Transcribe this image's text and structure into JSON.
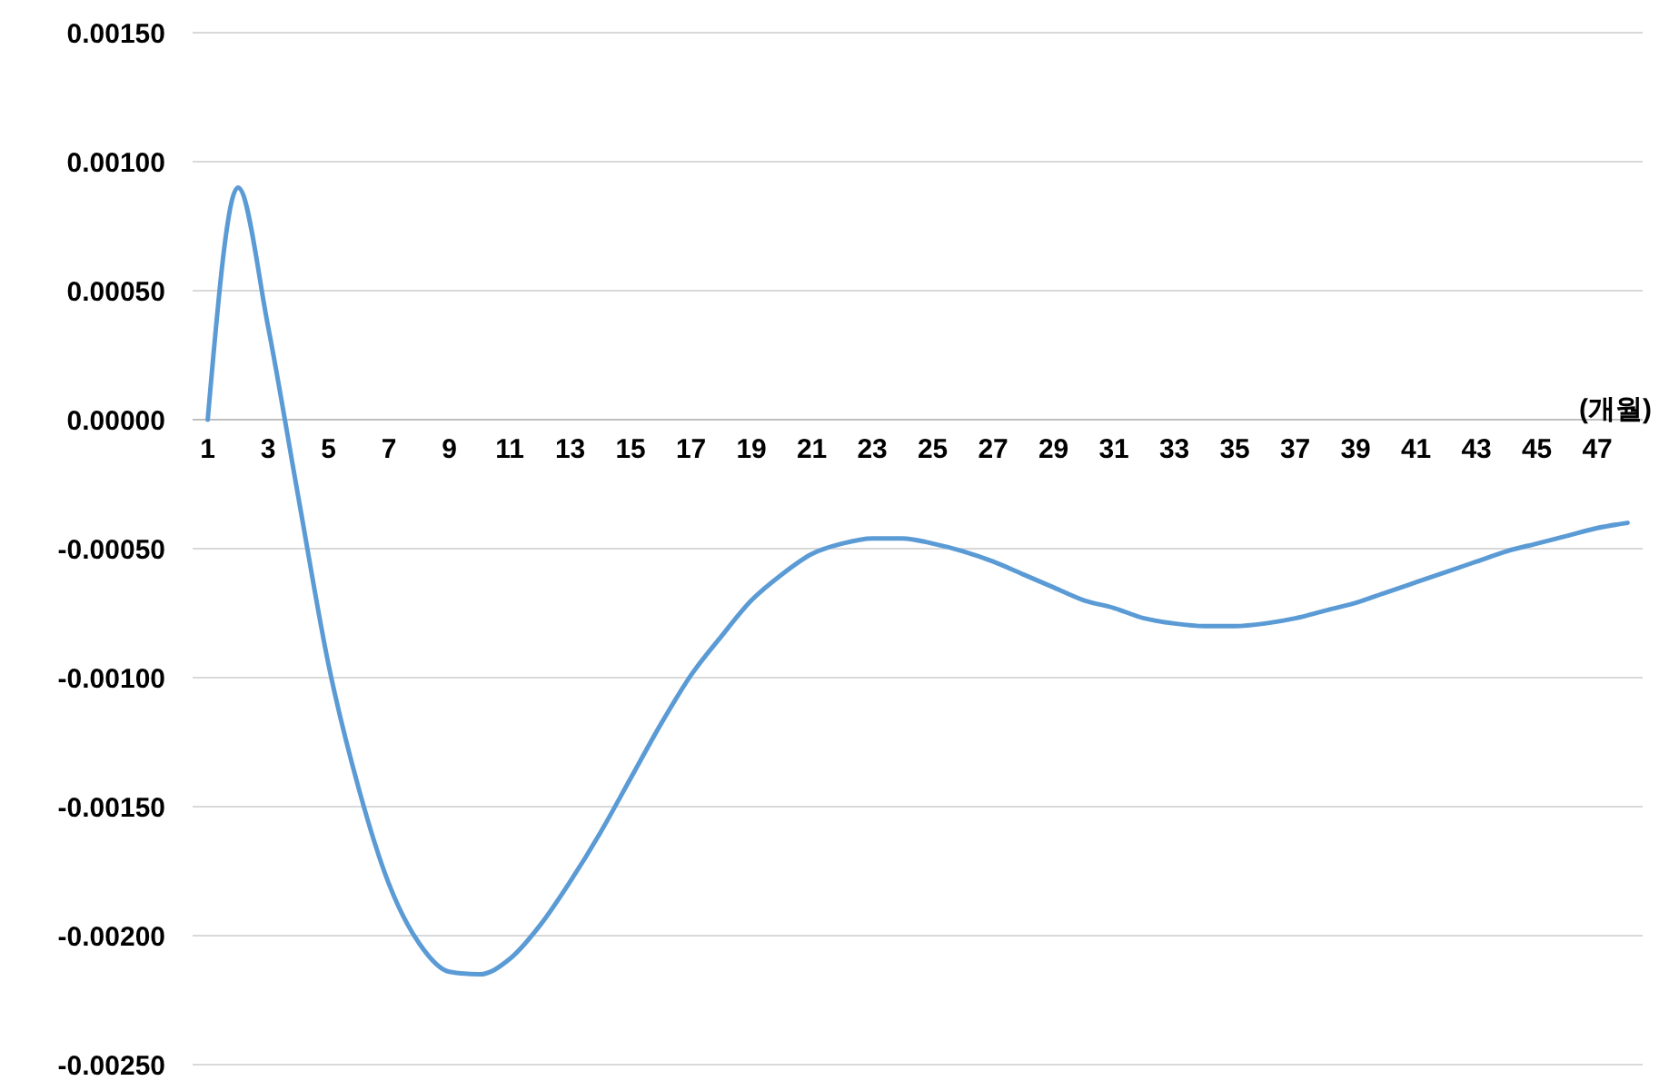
{
  "chart_data": {
    "type": "line",
    "xlabel": "(개월)",
    "x": [
      1,
      2,
      3,
      4,
      5,
      6,
      7,
      8,
      9,
      10,
      11,
      12,
      13,
      14,
      15,
      16,
      17,
      18,
      19,
      20,
      21,
      22,
      23,
      24,
      25,
      26,
      27,
      28,
      29,
      30,
      31,
      32,
      33,
      34,
      35,
      36,
      37,
      38,
      39,
      40,
      41,
      42,
      43,
      44,
      45,
      46,
      47,
      48
    ],
    "xlim": [
      0.5,
      48.5
    ],
    "xticks": [
      1,
      3,
      5,
      7,
      9,
      11,
      13,
      15,
      17,
      19,
      21,
      23,
      25,
      27,
      29,
      31,
      33,
      35,
      37,
      39,
      41,
      43,
      45,
      47
    ],
    "series": [
      {
        "color": "#5b9bd5",
        "values": [
          0,
          0.0009,
          0.00036,
          -0.0003,
          -0.00095,
          -0.00143,
          -0.0018,
          -0.00203,
          -0.00214,
          -0.00215,
          -0.00209,
          -0.00196,
          -0.00179,
          -0.0016,
          -0.00139,
          -0.00118,
          -0.00099,
          -0.00084,
          -0.0007,
          -0.0006,
          -0.00052,
          -0.00048,
          -0.00046,
          -0.00046,
          -0.00048,
          -0.00051,
          -0.00055,
          -0.0006,
          -0.00065,
          -0.0007,
          -0.00073,
          -0.00077,
          -0.00079,
          -0.0008,
          -0.0008,
          -0.00079,
          -0.00077,
          -0.00074,
          -0.00071,
          -0.00067,
          -0.00063,
          -0.00059,
          -0.00055,
          -0.00051,
          -0.00048,
          -0.00045,
          -0.00042,
          -0.0004
        ]
      }
    ],
    "ylim": [
      -0.0025,
      0.0015
    ],
    "yticks": [
      {
        "value": -0.0025,
        "label": "-0.00250"
      },
      {
        "value": -0.002,
        "label": "-0.00200"
      },
      {
        "value": -0.0015,
        "label": "-0.00150"
      },
      {
        "value": -0.001,
        "label": "-0.00100"
      },
      {
        "value": -0.0005,
        "label": "-0.00050"
      },
      {
        "value": 0,
        "label": "0.00000"
      },
      {
        "value": 0.0005,
        "label": "0.00050"
      },
      {
        "value": 0.001,
        "label": "0.00100"
      },
      {
        "value": 0.0015,
        "label": "0.00150"
      }
    ],
    "grid": "y",
    "marker": "none",
    "line_style": "solid"
  }
}
